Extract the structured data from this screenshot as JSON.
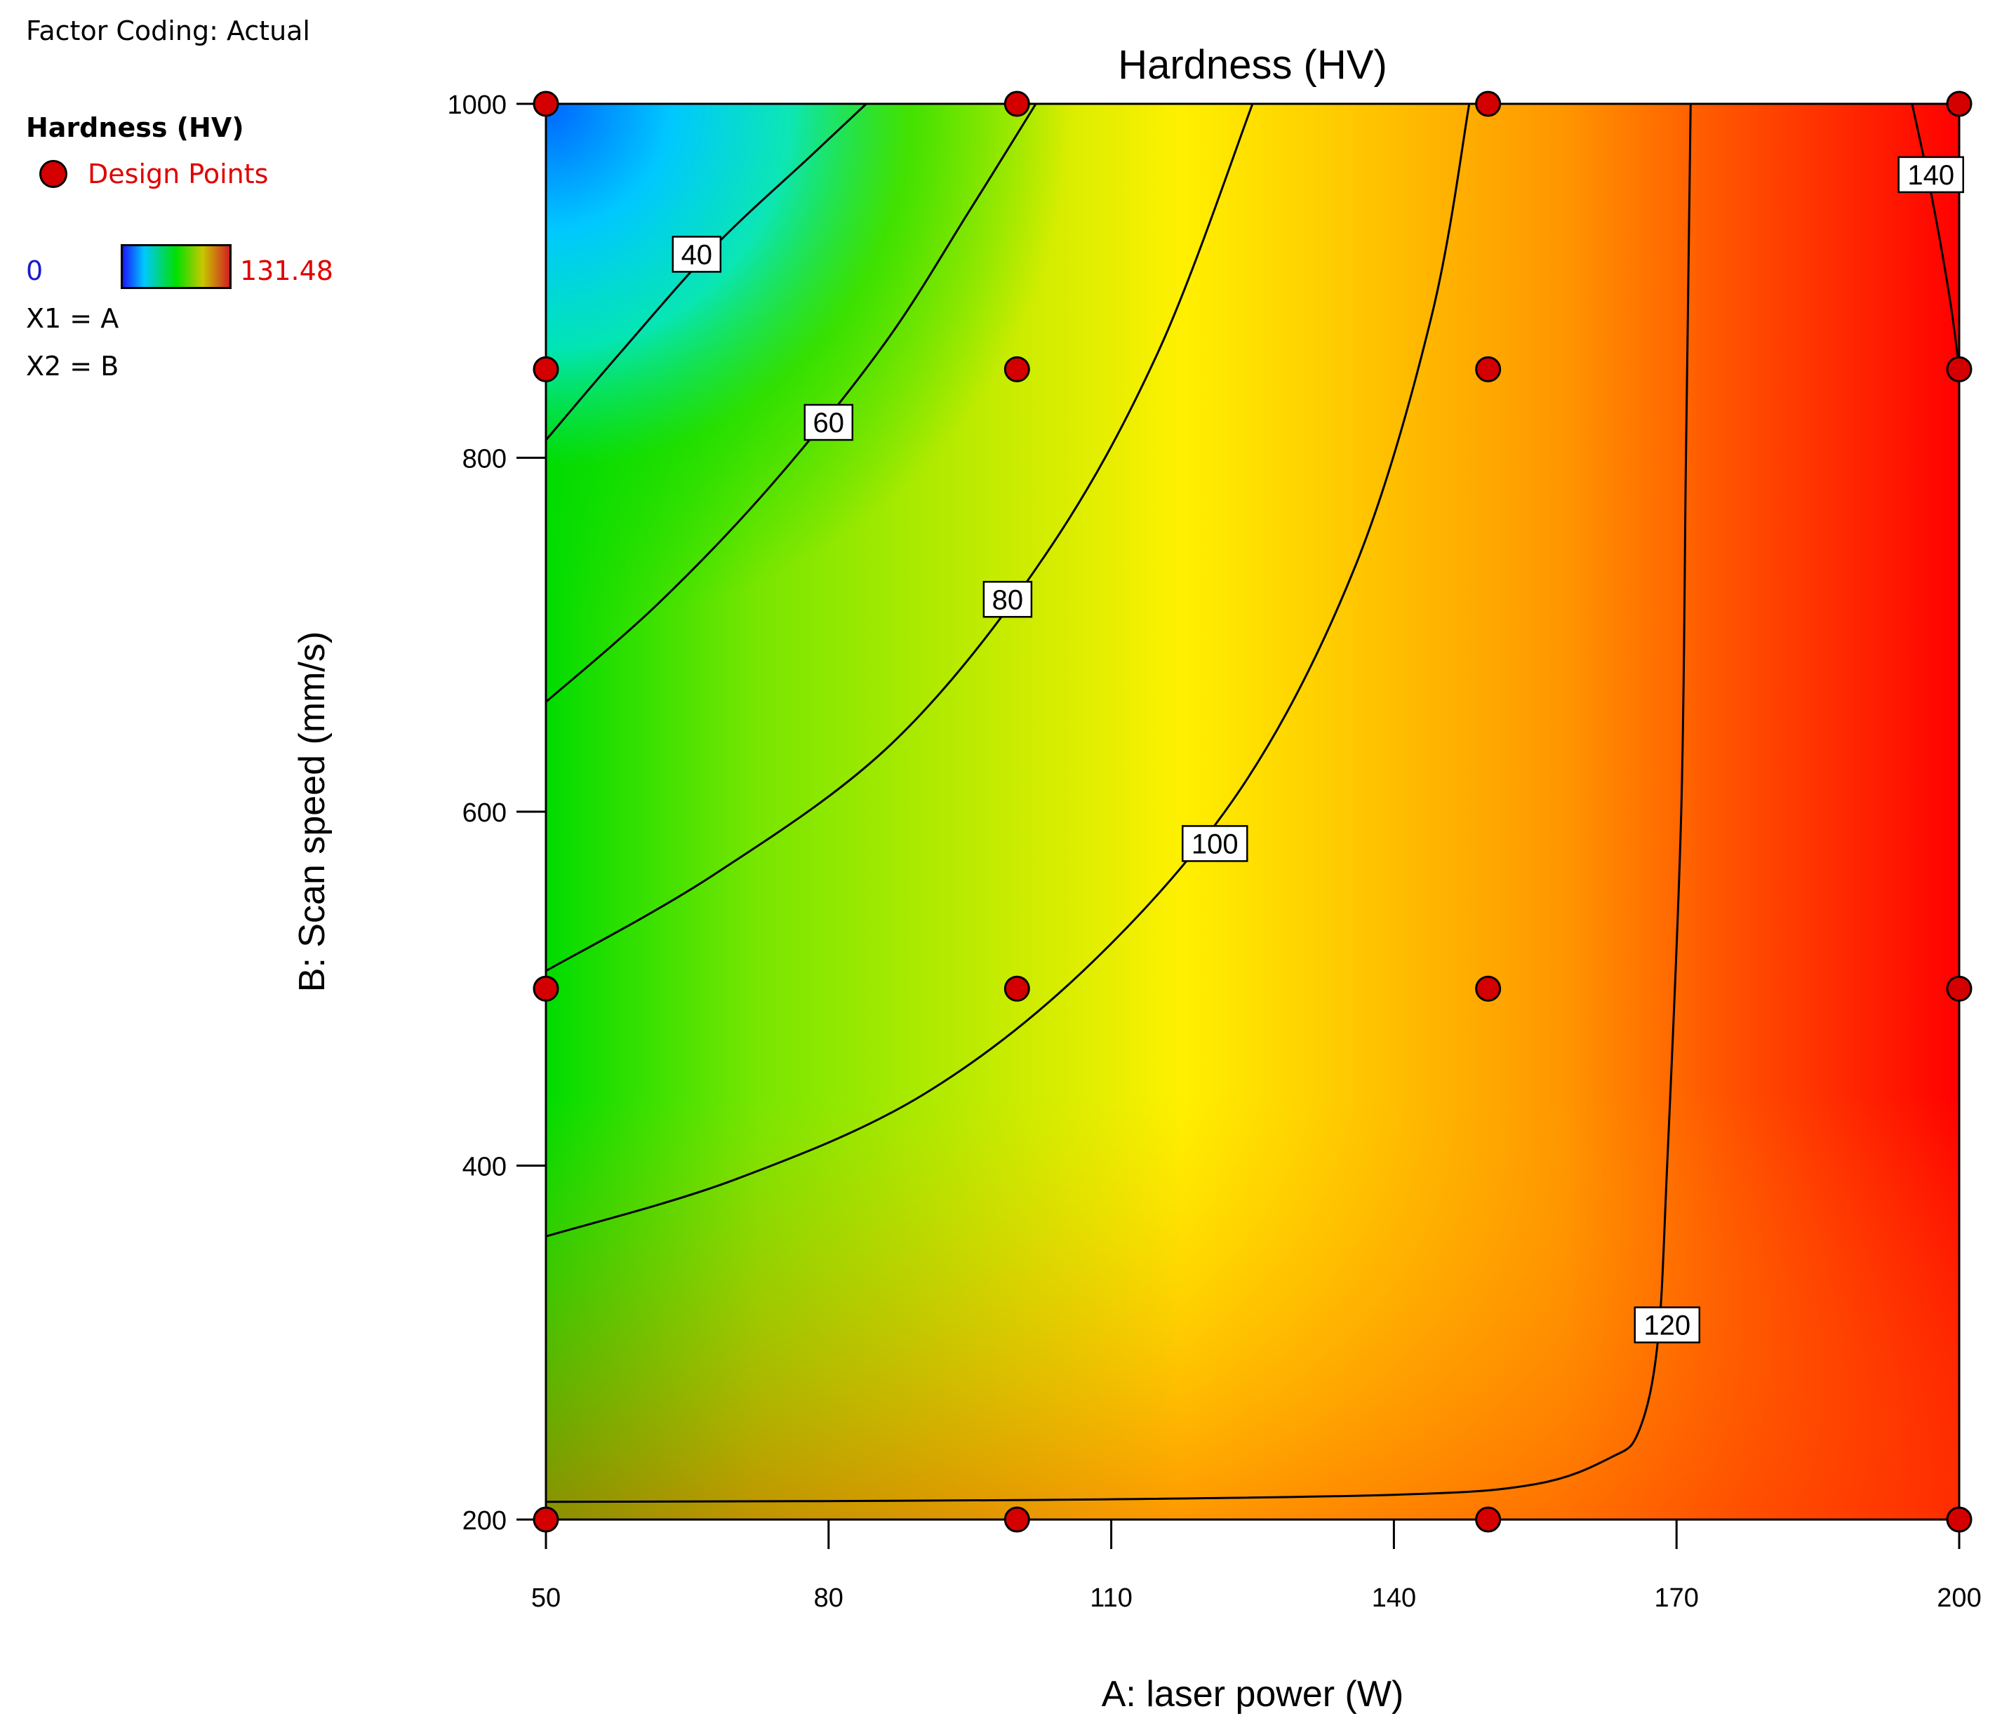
{
  "legend": {
    "caption": "Factor Coding: Actual",
    "title": "Hardness (HV)",
    "design_points_label": "Design Points",
    "color_min": "0",
    "color_max": "131.48",
    "x1": "X1 = A",
    "x2": "X2 = B"
  },
  "chart_data": {
    "type": "heatmap",
    "title": "Hardness (HV)",
    "xlabel": "A: laser power (W)",
    "ylabel": "B: Scan speed (mm/s)",
    "xlim": [
      50,
      200
    ],
    "ylim": [
      200,
      1000
    ],
    "xticks": [
      50,
      80,
      110,
      140,
      170,
      200
    ],
    "yticks": [
      200,
      400,
      600,
      800,
      1000
    ],
    "colors": {
      "low": "#1a4bff",
      "high": "#ff0000",
      "design_point": "#d40000"
    },
    "design_points": [
      [
        50,
        1000
      ],
      [
        100,
        1000
      ],
      [
        150,
        1000
      ],
      [
        200,
        1000
      ],
      [
        50,
        850
      ],
      [
        100,
        850
      ],
      [
        150,
        850
      ],
      [
        200,
        850
      ],
      [
        50,
        500
      ],
      [
        100,
        500
      ],
      [
        150,
        500
      ],
      [
        200,
        500
      ],
      [
        50,
        200
      ],
      [
        100,
        200
      ],
      [
        150,
        200
      ],
      [
        200,
        200
      ]
    ],
    "contours": [
      {
        "level": "40",
        "label_at": [
          66,
          915
        ],
        "points": [
          [
            50,
            810
          ],
          [
            58,
            860
          ],
          [
            68,
            920
          ],
          [
            78,
            970
          ],
          [
            84,
            1000
          ]
        ]
      },
      {
        "level": "60",
        "label_at": [
          80,
          820
        ],
        "points": [
          [
            50,
            662
          ],
          [
            62,
            718
          ],
          [
            74,
            785
          ],
          [
            86,
            865
          ],
          [
            95,
            940
          ],
          [
            102,
            1000
          ]
        ]
      },
      {
        "level": "80",
        "label_at": [
          99,
          720
        ],
        "points": [
          [
            50,
            510
          ],
          [
            68,
            565
          ],
          [
            87,
            640
          ],
          [
            103,
            745
          ],
          [
            115,
            860
          ],
          [
            125,
            1000
          ]
        ]
      },
      {
        "level": "100",
        "label_at": [
          121,
          582
        ],
        "points": [
          [
            50,
            360
          ],
          [
            70,
            392
          ],
          [
            90,
            440
          ],
          [
            108,
            515
          ],
          [
            124,
            615
          ],
          [
            136,
            740
          ],
          [
            144,
            880
          ],
          [
            148,
            1000
          ]
        ]
      },
      {
        "level": "120",
        "label_at": [
          169,
          310
        ],
        "points": [
          [
            50,
            210
          ],
          [
            100,
            211
          ],
          [
            140,
            214
          ],
          [
            155,
            220
          ],
          [
            163,
            235
          ],
          [
            166,
            250
          ],
          [
            168,
            300
          ],
          [
            169,
            400
          ],
          [
            170.5,
            600
          ],
          [
            171,
            800
          ],
          [
            171.5,
            1000
          ]
        ]
      },
      {
        "level": "140",
        "label_at": [
          197,
          960
        ],
        "points": [
          [
            195,
            1000
          ],
          [
            197,
            950
          ],
          [
            199,
            890
          ],
          [
            200,
            850
          ]
        ]
      }
    ]
  }
}
